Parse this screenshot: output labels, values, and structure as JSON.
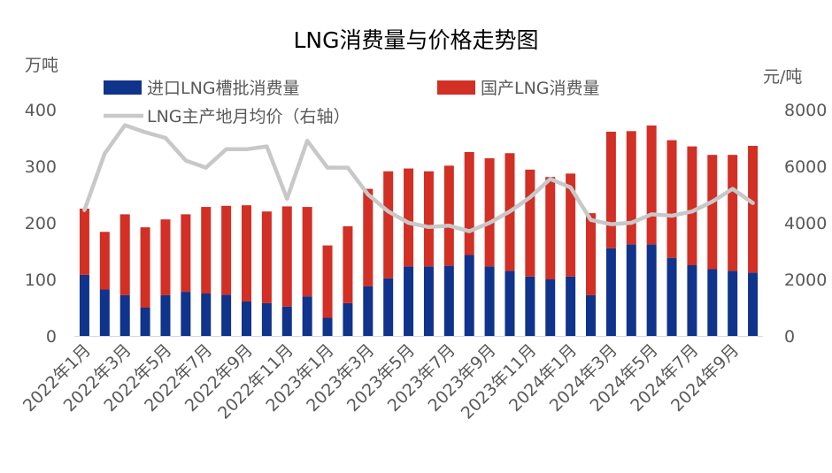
{
  "chart_data": {
    "type": "bar+line",
    "title": "LNG消费量与价格走势图",
    "left_unit": "万吨",
    "right_unit": "元/吨",
    "ylim_left": [
      0,
      400
    ],
    "ylim_right": [
      0,
      8000
    ],
    "yticks_left": [
      "0",
      "100",
      "200",
      "300",
      "400"
    ],
    "yticks_right": [
      "0",
      "2000",
      "4000",
      "6000",
      "8000"
    ],
    "grid": false,
    "legend": {
      "position": "top",
      "import_label": "进口LNG槽批消费量",
      "domestic_label": "国产LNG消费量",
      "price_label": "LNG主产地月均价（右轴）"
    },
    "colors": {
      "import": "#10338c",
      "domestic": "#d22f25",
      "price": "#c8c8c8",
      "axis_text": "#595959"
    },
    "categories": [
      "2022年1月",
      "2022年2月",
      "2022年3月",
      "2022年4月",
      "2022年5月",
      "2022年6月",
      "2022年7月",
      "2022年8月",
      "2022年9月",
      "2022年10月",
      "2022年11月",
      "2022年12月",
      "2023年1月",
      "2023年2月",
      "2023年3月",
      "2023年4月",
      "2023年5月",
      "2023年6月",
      "2023年7月",
      "2023年8月",
      "2023年9月",
      "2023年10月",
      "2023年11月",
      "2023年12月",
      "2024年1月",
      "2024年2月",
      "2024年3月",
      "2024年4月",
      "2024年5月",
      "2024年6月",
      "2024年7月",
      "2024年8月",
      "2024年9月",
      "2024年10月"
    ],
    "visible_x_labels": [
      "2022年1月",
      "2022年3月",
      "2022年5月",
      "2022年7月",
      "2022年9月",
      "2022年11月",
      "2023年1月",
      "2023年3月",
      "2023年5月",
      "2023年7月",
      "2023年9月",
      "2023年11月",
      "2024年1月",
      "2024年3月",
      "2024年5月",
      "2024年7月",
      "2024年9月"
    ],
    "series": [
      {
        "name": "进口LNG槽批消费量",
        "kind": "stacked-bar",
        "values": [
          108,
          82,
          72,
          50,
          72,
          78,
          75,
          73,
          61,
          58,
          52,
          70,
          32,
          58,
          88,
          102,
          123,
          123,
          124,
          143,
          123,
          115,
          105,
          100,
          105,
          72,
          155,
          162,
          162,
          138,
          125,
          118,
          115,
          112
        ]
      },
      {
        "name": "国产LNG消费量",
        "kind": "stacked-bar",
        "values": [
          117,
          102,
          143,
          142,
          134,
          137,
          153,
          157,
          170,
          162,
          177,
          158,
          128,
          136,
          172,
          189,
          173,
          168,
          177,
          182,
          191,
          208,
          189,
          181,
          182,
          145,
          206,
          200,
          210,
          208,
          210,
          202,
          205,
          224
        ]
      },
      {
        "name": "LNG主产地月均价（右轴）",
        "kind": "line",
        "axis": "right",
        "values": [
          4450,
          6450,
          7450,
          7200,
          7000,
          6200,
          5950,
          6600,
          6600,
          6700,
          4850,
          6900,
          5950,
          5950,
          5000,
          4400,
          4000,
          3850,
          3900,
          3700,
          4000,
          4400,
          4900,
          5550,
          5250,
          4100,
          3950,
          4000,
          4300,
          4250,
          4400,
          4750,
          5200,
          4700
        ]
      }
    ]
  }
}
